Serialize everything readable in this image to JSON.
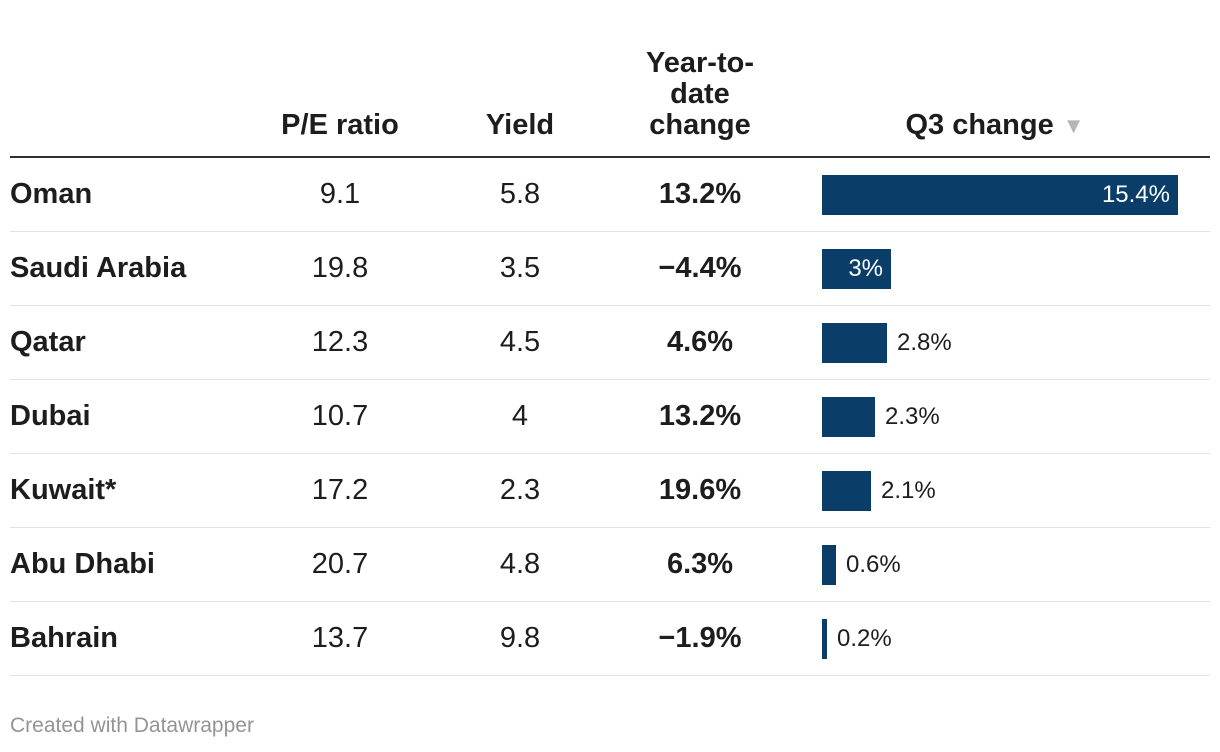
{
  "header": {
    "country_col_label": "",
    "columns": [
      {
        "id": "pe",
        "label": "P/E ratio"
      },
      {
        "id": "yield",
        "label": "Yield"
      },
      {
        "id": "ytd",
        "label": "Year-to-date change"
      },
      {
        "id": "q3",
        "label": "Q3 change"
      }
    ],
    "sort_icon": "▼",
    "sorted_column": "Q3 change",
    "sort_direction": "descending"
  },
  "rows": [
    {
      "country": "Oman",
      "pe": "9.1",
      "yield": "5.8",
      "ytd": "13.2%",
      "q3": "15.4%",
      "q3_value": 15.4,
      "q3_label_position": "inside"
    },
    {
      "country": "Saudi Arabia",
      "pe": "19.8",
      "yield": "3.5",
      "ytd": "−4.4%",
      "q3": "3%",
      "q3_value": 3.0,
      "q3_label_position": "inside"
    },
    {
      "country": "Qatar",
      "pe": "12.3",
      "yield": "4.5",
      "ytd": "4.6%",
      "q3": "2.8%",
      "q3_value": 2.8,
      "q3_label_position": "outside"
    },
    {
      "country": "Dubai",
      "pe": "10.7",
      "yield": "4",
      "ytd": "13.2%",
      "q3": "2.3%",
      "q3_value": 2.3,
      "q3_label_position": "outside"
    },
    {
      "country": "Kuwait*",
      "pe": "17.2",
      "yield": "2.3",
      "ytd": "19.6%",
      "q3": "2.1%",
      "q3_value": 2.1,
      "q3_label_position": "outside"
    },
    {
      "country": "Abu Dhabi",
      "pe": "20.7",
      "yield": "4.8",
      "ytd": "6.3%",
      "q3": "0.6%",
      "q3_value": 0.6,
      "q3_label_position": "outside"
    },
    {
      "country": "Bahrain",
      "pe": "13.7",
      "yield": "9.8",
      "ytd": "−1.9%",
      "q3": "0.2%",
      "q3_value": 0.2,
      "q3_label_position": "outside"
    }
  ],
  "chart_data": {
    "type": "table",
    "columns": [
      "",
      "P/E ratio",
      "Yield",
      "Year-to-date change",
      "Q3 change"
    ],
    "categories": [
      "Oman",
      "Saudi Arabia",
      "Qatar",
      "Dubai",
      "Kuwait*",
      "Abu Dhabi",
      "Bahrain"
    ],
    "series": [
      {
        "name": "P/E ratio",
        "values": [
          9.1,
          19.8,
          12.3,
          10.7,
          17.2,
          20.7,
          13.7
        ]
      },
      {
        "name": "Yield",
        "values": [
          5.8,
          3.5,
          4.5,
          4,
          2.3,
          4.8,
          9.8
        ]
      },
      {
        "name": "Year-to-date change (%)",
        "values": [
          13.2,
          -4.4,
          4.6,
          13.2,
          19.6,
          6.3,
          -1.9
        ]
      },
      {
        "name": "Q3 change (%)",
        "values": [
          15.4,
          3,
          2.8,
          2.3,
          2.1,
          0.6,
          0.2
        ]
      }
    ],
    "bar_column": "Q3 change",
    "bar_axis_max": 15.4,
    "sorted_by": "Q3 change",
    "sort_direction": "descending",
    "grid": "row-dividers-only",
    "legend": "none"
  },
  "footer": {
    "credit": "Created with Datawrapper"
  },
  "colors": {
    "bar": "#0a3e69",
    "bar_label_inside": "#ffffff",
    "text": "#1d1d1d",
    "divider": "#e3e3e3",
    "header_rule": "#2f2f2f",
    "sort_icon": "#b5b5b5",
    "footer_text": "#949494",
    "bg": "#ffffff"
  }
}
